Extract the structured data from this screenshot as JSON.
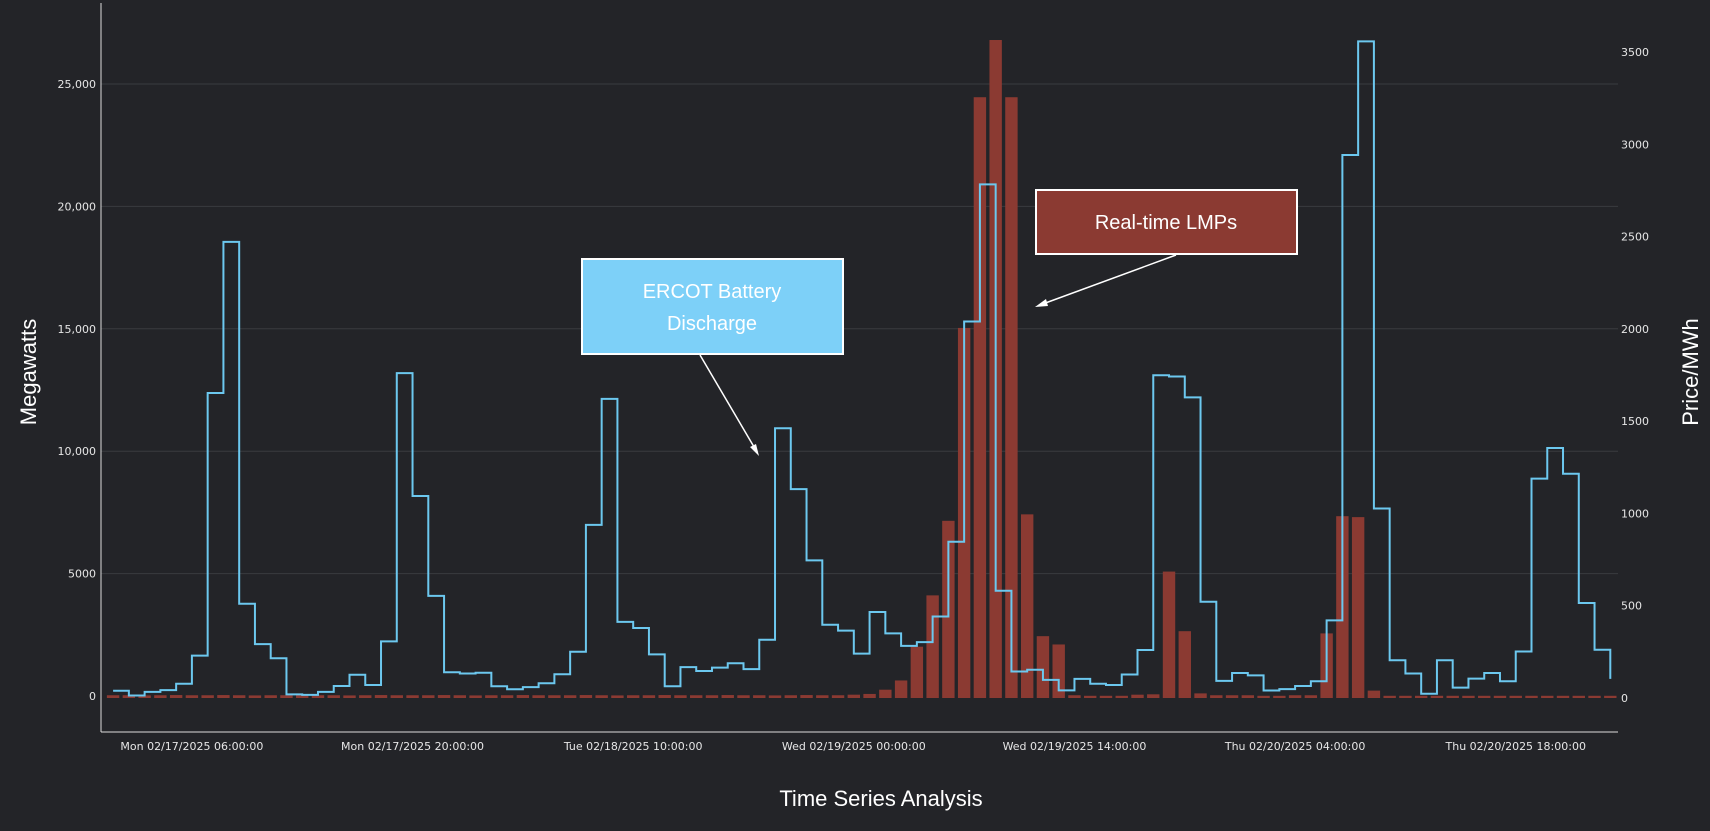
{
  "chart_data": {
    "type": "bar+line",
    "title": "",
    "xlabel": "Time Series Analysis",
    "ylabel_left": "Megawatts",
    "ylabel_right": "Price/MWh",
    "ylim_left": [
      -1470,
      28300
    ],
    "ylim_right": [
      -184,
      3765
    ],
    "grid": true,
    "colors": {
      "background": "#232428",
      "line": "#6cc8ef",
      "bars": "#8b3a32",
      "grid": "#3a3b3f",
      "axis": "#dcdcdc"
    },
    "x_ticks": [
      {
        "x": "2025-02-17 06:00",
        "label": "Mon 02/17/2025 06:00:00"
      },
      {
        "x": "2025-02-17 20:00",
        "label": "Mon 02/17/2025 20:00:00"
      },
      {
        "x": "2025-02-18 10:00",
        "label": "Tue 02/18/2025 10:00:00"
      },
      {
        "x": "2025-02-19 00:00",
        "label": "Wed 02/19/2025 00:00:00"
      },
      {
        "x": "2025-02-19 14:00",
        "label": "Wed 02/19/2025 14:00:00"
      },
      {
        "x": "2025-02-20 04:00",
        "label": "Thu 02/20/2025 04:00:00"
      },
      {
        "x": "2025-02-20 18:00",
        "label": "Thu 02/20/2025 18:00:00"
      }
    ],
    "y_ticks_left": [
      {
        "value": 0,
        "label": "0"
      },
      {
        "value": 5000,
        "label": "5000"
      },
      {
        "value": 10000,
        "label": "10,000"
      },
      {
        "value": 15000,
        "label": "15,000"
      },
      {
        "value": 20000,
        "label": "20,000"
      },
      {
        "value": 25000,
        "label": "25,000"
      }
    ],
    "y_ticks_right": [
      {
        "value": 0,
        "label": "0"
      },
      {
        "value": 500,
        "label": "500"
      },
      {
        "value": 1000,
        "label": "1000"
      },
      {
        "value": 1500,
        "label": "1500"
      },
      {
        "value": 2000,
        "label": "2000"
      },
      {
        "value": 2500,
        "label": "2500"
      },
      {
        "value": 3000,
        "label": "3000"
      },
      {
        "value": 3500,
        "label": "3500"
      }
    ],
    "x": [
      "2025-02-17 01:00",
      "2025-02-17 02:00",
      "2025-02-17 03:00",
      "2025-02-17 04:00",
      "2025-02-17 05:00",
      "2025-02-17 06:00",
      "2025-02-17 07:00",
      "2025-02-17 08:00",
      "2025-02-17 09:00",
      "2025-02-17 10:00",
      "2025-02-17 11:00",
      "2025-02-17 12:00",
      "2025-02-17 13:00",
      "2025-02-17 14:00",
      "2025-02-17 15:00",
      "2025-02-17 16:00",
      "2025-02-17 17:00",
      "2025-02-17 18:00",
      "2025-02-17 19:00",
      "2025-02-17 20:00",
      "2025-02-17 21:00",
      "2025-02-17 22:00",
      "2025-02-17 23:00",
      "2025-02-18 00:00",
      "2025-02-18 01:00",
      "2025-02-18 02:00",
      "2025-02-18 03:00",
      "2025-02-18 04:00",
      "2025-02-18 05:00",
      "2025-02-18 06:00",
      "2025-02-18 07:00",
      "2025-02-18 08:00",
      "2025-02-18 09:00",
      "2025-02-18 10:00",
      "2025-02-18 11:00",
      "2025-02-18 12:00",
      "2025-02-18 13:00",
      "2025-02-18 14:00",
      "2025-02-18 15:00",
      "2025-02-18 16:00",
      "2025-02-18 17:00",
      "2025-02-18 18:00",
      "2025-02-18 19:00",
      "2025-02-18 20:00",
      "2025-02-18 21:00",
      "2025-02-18 22:00",
      "2025-02-18 23:00",
      "2025-02-19 00:00",
      "2025-02-19 01:00",
      "2025-02-19 02:00",
      "2025-02-19 03:00",
      "2025-02-19 04:00",
      "2025-02-19 05:00",
      "2025-02-19 06:00",
      "2025-02-19 07:00",
      "2025-02-19 08:00",
      "2025-02-19 09:00",
      "2025-02-19 10:00",
      "2025-02-19 11:00",
      "2025-02-19 12:00",
      "2025-02-19 13:00",
      "2025-02-19 14:00",
      "2025-02-19 15:00",
      "2025-02-19 16:00",
      "2025-02-19 17:00",
      "2025-02-19 18:00",
      "2025-02-19 19:00",
      "2025-02-19 20:00",
      "2025-02-19 21:00",
      "2025-02-19 22:00",
      "2025-02-19 23:00",
      "2025-02-20 00:00",
      "2025-02-20 01:00",
      "2025-02-20 02:00",
      "2025-02-20 03:00",
      "2025-02-20 04:00",
      "2025-02-20 05:00",
      "2025-02-20 06:00",
      "2025-02-20 07:00",
      "2025-02-20 08:00",
      "2025-02-20 09:00",
      "2025-02-20 10:00",
      "2025-02-20 11:00",
      "2025-02-20 12:00",
      "2025-02-20 13:00",
      "2025-02-20 14:00",
      "2025-02-20 15:00",
      "2025-02-20 16:00",
      "2025-02-20 17:00",
      "2025-02-20 18:00",
      "2025-02-20 19:00",
      "2025-02-20 20:00",
      "2025-02-20 21:00",
      "2025-02-20 22:00",
      "2025-02-20 23:00",
      "2025-02-21 00:00"
    ],
    "series": [
      {
        "name": "ERCOT Battery Discharge",
        "type": "step-line",
        "axis": "left",
        "values": [
          216,
          20,
          170,
          240,
          500,
          1650,
          12380,
          18550,
          3770,
          2120,
          1540,
          65,
          45,
          170,
          410,
          870,
          450,
          2230,
          13190,
          8170,
          4090,
          970,
          920,
          950,
          400,
          275,
          360,
          520,
          890,
          1810,
          6990,
          12140,
          3030,
          2780,
          1700,
          400,
          1180,
          1020,
          1160,
          1340,
          1100,
          2300,
          10940,
          8450,
          5540,
          2910,
          2670,
          1730,
          3430,
          2560,
          2050,
          2200,
          3250,
          6300,
          15300,
          20900,
          4300,
          1000,
          1070,
          660,
          230,
          700,
          500,
          450,
          880,
          1880,
          13100,
          13050,
          12200,
          3850,
          620,
          940,
          840,
          225,
          280,
          410,
          600,
          3090,
          22100,
          26740,
          7660,
          1460,
          920,
          90,
          1460,
          340,
          710,
          940,
          600,
          1820,
          8880,
          10130,
          9080,
          3800,
          1890,
          700
        ]
      },
      {
        "name": "Real-time LMPs",
        "type": "bar",
        "axis": "right",
        "values": [
          15,
          15,
          14,
          15,
          16,
          15,
          15,
          16,
          15,
          14,
          15,
          15,
          16,
          15,
          15,
          14,
          15,
          16,
          15,
          15,
          15,
          16,
          15,
          14,
          15,
          15,
          16,
          15,
          15,
          15,
          16,
          15,
          14,
          15,
          15,
          16,
          15,
          15,
          15,
          16,
          15,
          15,
          14,
          15,
          16,
          15,
          15,
          18,
          22,
          45,
          95,
          278,
          556,
          960,
          2005,
          3255,
          3565,
          3255,
          995,
          335,
          290,
          15,
          12,
          12,
          12,
          18,
          20,
          685,
          362,
          25,
          15,
          15,
          15,
          12,
          12,
          15,
          15,
          350,
          985,
          980,
          40,
          12,
          12,
          12,
          12,
          12,
          12,
          12,
          12,
          12,
          12,
          12,
          12,
          12,
          12,
          12
        ]
      }
    ],
    "annotations": [
      {
        "text_line1": "ERCOT Battery",
        "text_line2": "Discharge",
        "fill": "#7dd0f8"
      },
      {
        "text": "Real-time LMPs",
        "fill": "#8b3a32"
      }
    ]
  }
}
